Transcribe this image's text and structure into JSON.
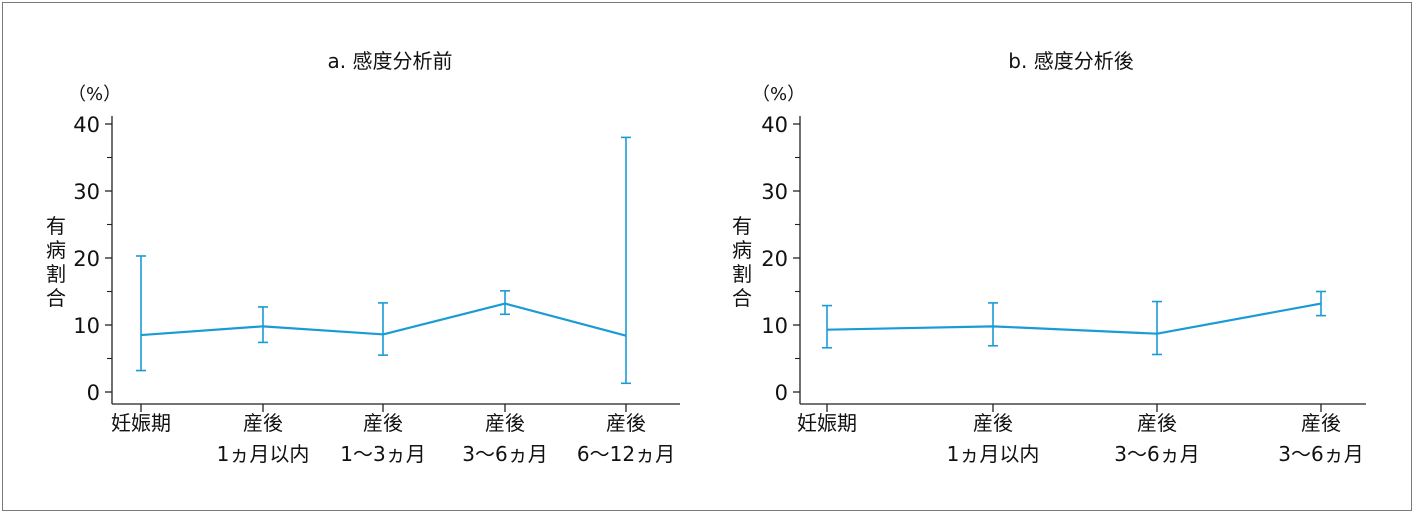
{
  "chart_data": [
    {
      "type": "line",
      "title": "a. 感度分析前",
      "yunit": "（%）",
      "ylabel": "有病割合",
      "ylim": [
        0,
        40
      ],
      "yticks": [
        0,
        10,
        20,
        30,
        40
      ],
      "categories": [
        [
          "妊娠期"
        ],
        [
          "産後",
          "1ヵ月以内"
        ],
        [
          "産後",
          "1〜3ヵ月"
        ],
        [
          "産後",
          "3〜6ヵ月"
        ],
        [
          "産後",
          "6〜12ヵ月"
        ]
      ],
      "values": [
        8.5,
        9.8,
        8.6,
        13.2,
        8.4
      ],
      "error_low": [
        3.2,
        7.4,
        5.5,
        11.6,
        1.3
      ],
      "error_high": [
        20.3,
        12.7,
        13.3,
        15.1,
        38.0
      ],
      "line_color": "#1a9bd7"
    },
    {
      "type": "line",
      "title": "b. 感度分析後",
      "yunit": "（%）",
      "ylabel": "有病割合",
      "ylim": [
        0,
        40
      ],
      "yticks": [
        0,
        10,
        20,
        30,
        40
      ],
      "categories": [
        [
          "妊娠期"
        ],
        [
          "産後",
          "1ヵ月以内"
        ],
        [
          "産後",
          "3〜6ヵ月"
        ],
        [
          "産後",
          "3〜6ヵ月"
        ]
      ],
      "values": [
        9.3,
        9.8,
        8.7,
        13.2
      ],
      "error_low": [
        6.6,
        6.9,
        5.6,
        11.4
      ],
      "error_high": [
        12.9,
        13.3,
        13.5,
        15.0
      ],
      "line_color": "#1a9bd7"
    }
  ]
}
